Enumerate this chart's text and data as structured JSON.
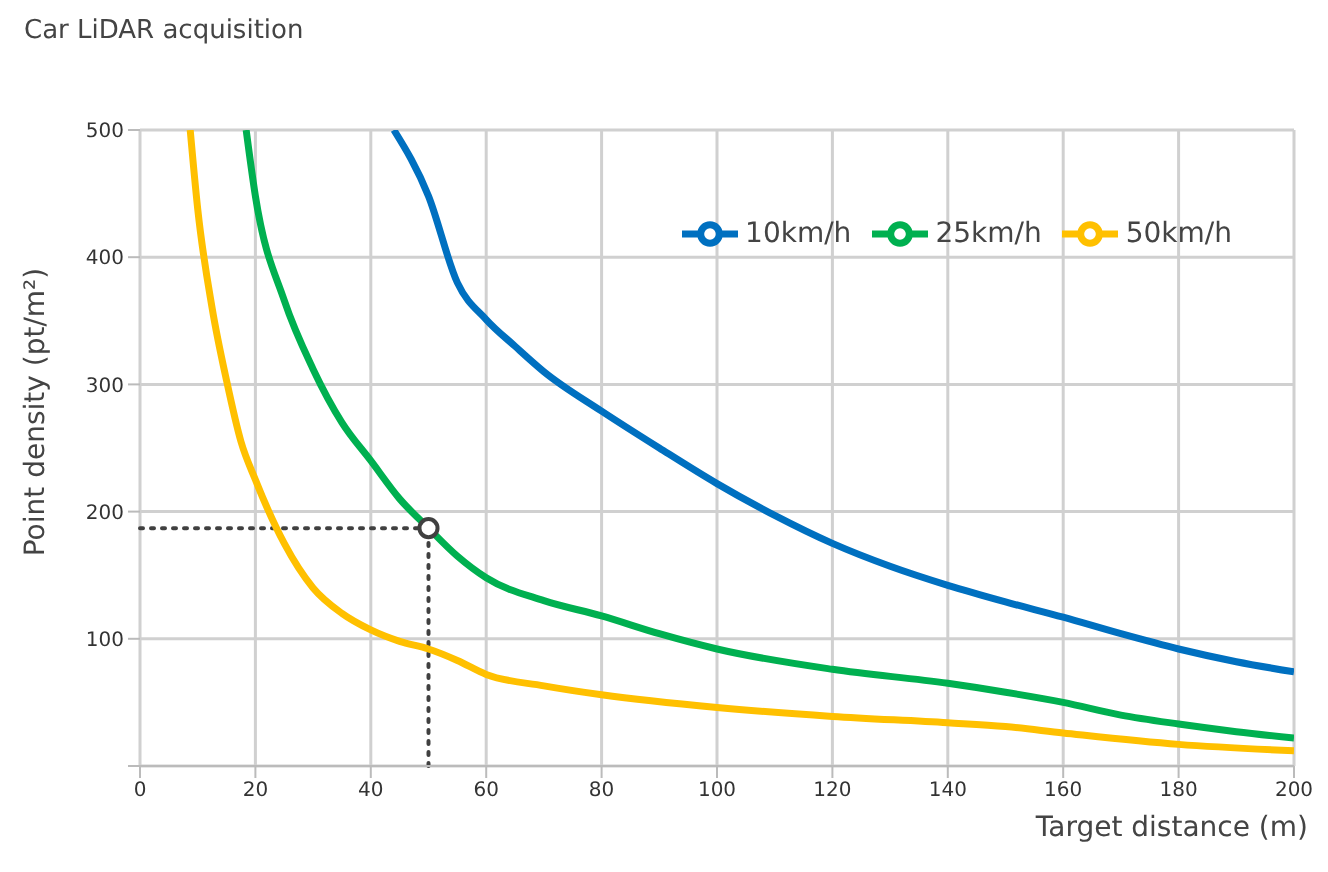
{
  "chart_data": {
    "type": "line",
    "title": "Car LiDAR acquisition",
    "xlabel": "Target distance (m)",
    "ylabel": "Point density (pt/m²)",
    "xlim": [
      0,
      200
    ],
    "xticks": [
      0,
      20,
      40,
      60,
      80,
      100,
      120,
      140,
      160,
      180,
      200
    ],
    "ylim": [
      0,
      500
    ],
    "yticks": [
      {
        "value": 0,
        "label": null
      },
      100,
      200,
      300,
      400,
      500
    ],
    "grid": true,
    "legend": "top right",
    "marker": "none",
    "line_style": "solid",
    "series": [
      {
        "name": "10km/h",
        "color": "#0070c0",
        "x": [
          44,
          50,
          55,
          60,
          65,
          70,
          80,
          90,
          100,
          110,
          120,
          130,
          140,
          150,
          160,
          170,
          180,
          190,
          200
        ],
        "values": [
          500,
          448,
          380,
          351,
          330,
          310,
          279,
          250,
          222,
          197,
          175,
          157,
          142,
          129,
          117,
          104,
          92,
          82,
          74
        ]
      },
      {
        "name": "25km/h",
        "color": "#00b050",
        "x": [
          18.4,
          20,
          25,
          30,
          35,
          40,
          45,
          50,
          55,
          60,
          70,
          80,
          90,
          100,
          120,
          140,
          150,
          160,
          170,
          180,
          190,
          200
        ],
        "values": [
          500,
          448,
          366,
          312,
          270,
          240,
          210,
          187,
          165,
          148,
          130,
          118,
          104,
          92,
          76,
          65,
          58,
          50,
          40,
          33,
          27,
          22
        ]
      },
      {
        "name": "50km/h",
        "color": "#ffc000",
        "x": [
          8.7,
          10,
          12.5,
          15,
          17.5,
          20,
          25,
          30,
          35,
          40,
          45,
          50,
          55,
          60,
          70,
          80,
          100,
          120,
          140,
          150,
          160,
          180,
          200
        ],
        "values": [
          500,
          438,
          360,
          303,
          255,
          225,
          175,
          140,
          120,
          107,
          98,
          92,
          83,
          72,
          63,
          56,
          46,
          39,
          34,
          31,
          26,
          17,
          12
        ]
      },
      {
        "type": "scatter",
        "color": "#404040",
        "marker": "circle",
        "x": [
          50
        ],
        "values": [
          187
        ]
      }
    ],
    "ref_lines": [
      {
        "axis": "y",
        "value": 187,
        "label": null,
        "color": "#404040",
        "line_style": "dotted"
      },
      {
        "axis": "x",
        "value": 50,
        "label": null,
        "color": "#404040",
        "line_style": "dotted"
      }
    ]
  }
}
